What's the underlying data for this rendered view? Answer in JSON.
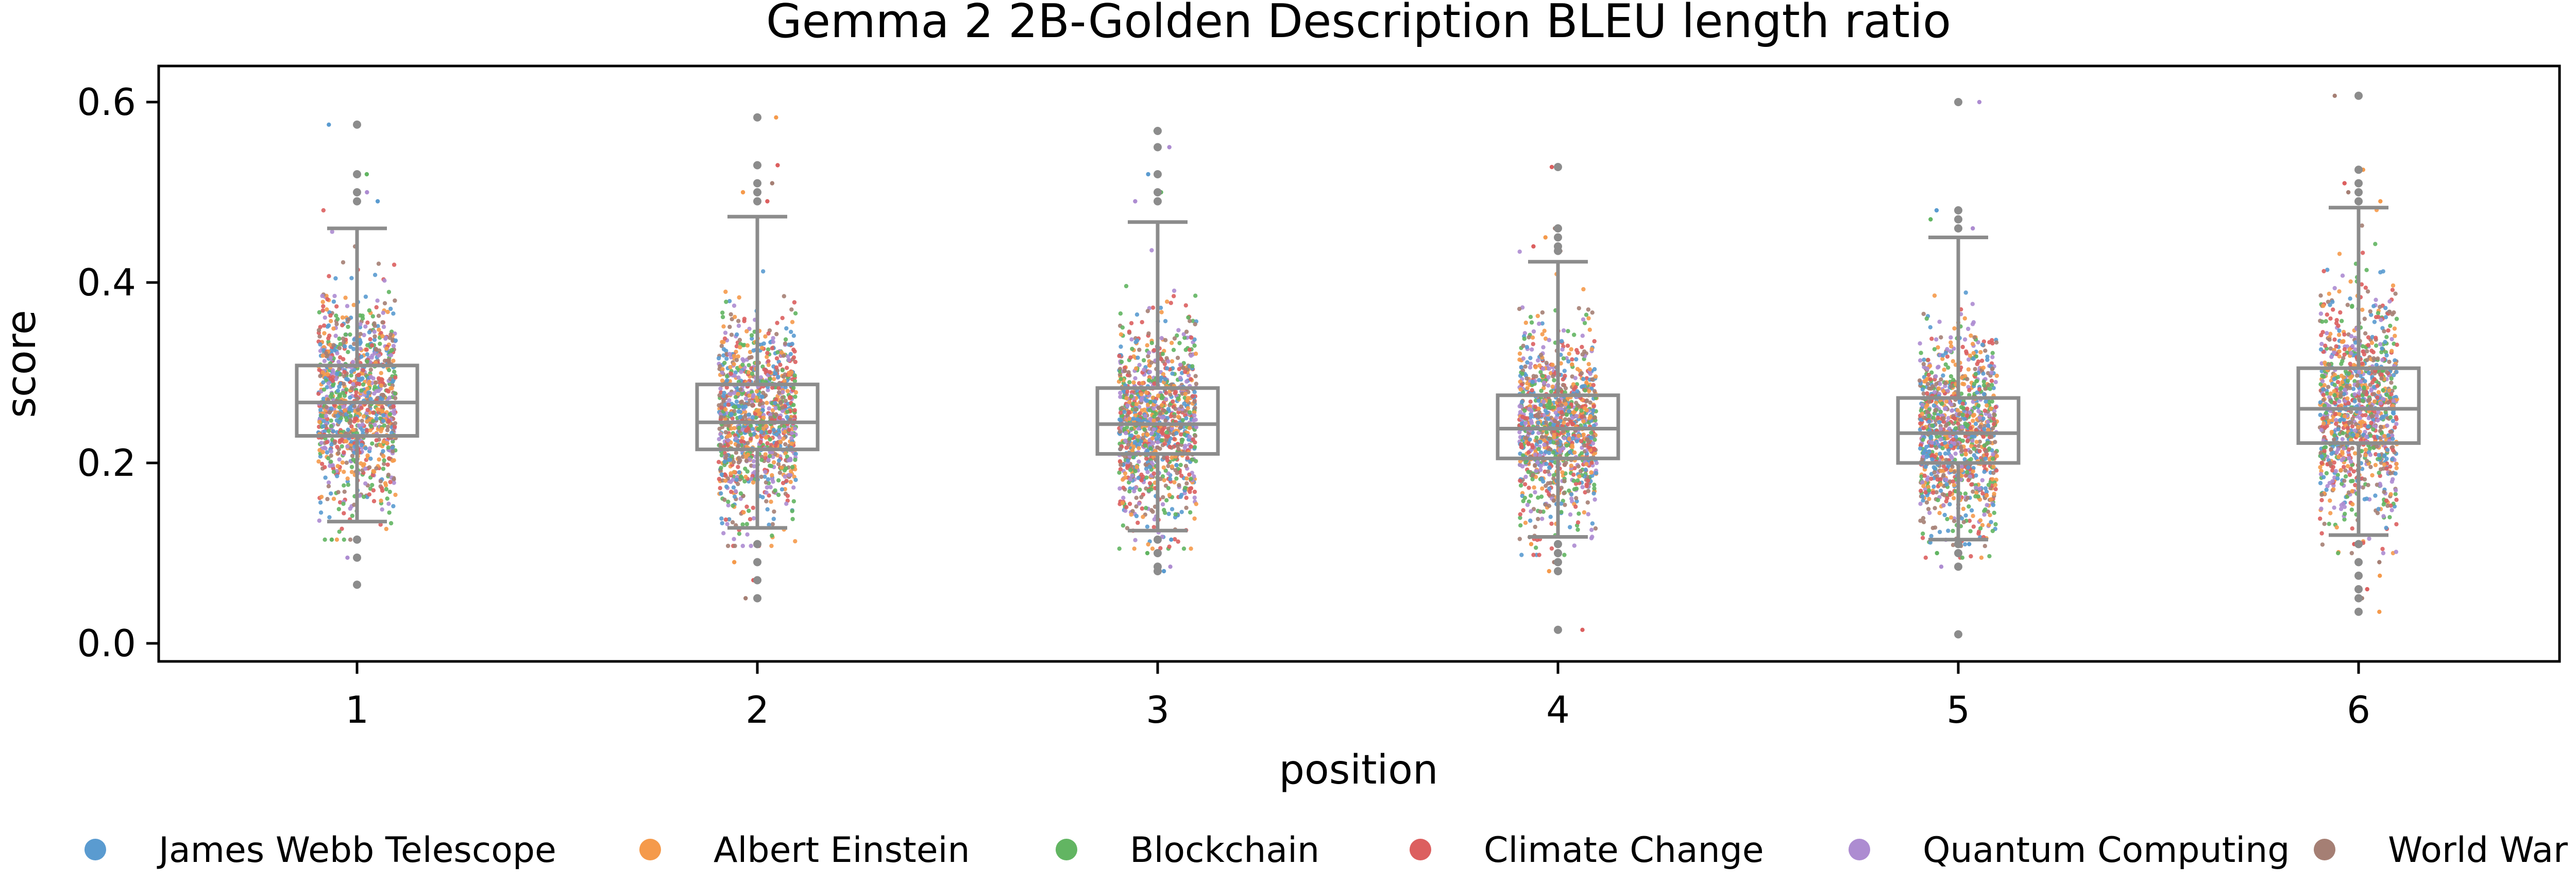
{
  "chart_data": {
    "type": "box-strip",
    "title": "Gemma 2 2B-Golden Description BLEU length ratio",
    "xlabel": "position",
    "ylabel": "score",
    "categories": [
      "1",
      "2",
      "3",
      "4",
      "5",
      "6"
    ],
    "ylim": [
      -0.02,
      0.64
    ],
    "yticks": [
      0.0,
      0.2,
      0.4,
      0.6
    ],
    "ytick_labels": [
      "0.0",
      "0.2",
      "0.4",
      "0.6"
    ],
    "grid": false,
    "legend_position": "bottom",
    "series": [
      {
        "name": "James Webb Telescope",
        "color": "#5a9bd0"
      },
      {
        "name": "Albert Einstein",
        "color": "#f59a4b"
      },
      {
        "name": "Blockchain",
        "color": "#62b562"
      },
      {
        "name": "Climate Change",
        "color": "#dc5f5f"
      },
      {
        "name": "Quantum Computing",
        "color": "#ad8cd1"
      },
      {
        "name": "World War II",
        "color": "#a57f74"
      }
    ],
    "boxes": [
      {
        "position": "1",
        "whisker_low": 0.135,
        "q1": 0.23,
        "median": 0.267,
        "q3": 0.308,
        "whisker_high": 0.46,
        "outliers": [
          0.575,
          0.52,
          0.5,
          0.49,
          0.115,
          0.095,
          0.065
        ]
      },
      {
        "position": "2",
        "whisker_low": 0.128,
        "q1": 0.215,
        "median": 0.245,
        "q3": 0.287,
        "whisker_high": 0.473,
        "outliers": [
          0.583,
          0.53,
          0.51,
          0.5,
          0.49,
          0.11,
          0.09,
          0.07,
          0.05
        ]
      },
      {
        "position": "3",
        "whisker_low": 0.125,
        "q1": 0.21,
        "median": 0.243,
        "q3": 0.283,
        "whisker_high": 0.467,
        "outliers": [
          0.568,
          0.55,
          0.52,
          0.5,
          0.49,
          0.115,
          0.1,
          0.085,
          0.08
        ]
      },
      {
        "position": "4",
        "whisker_low": 0.118,
        "q1": 0.205,
        "median": 0.238,
        "q3": 0.275,
        "whisker_high": 0.423,
        "outliers": [
          0.528,
          0.46,
          0.45,
          0.44,
          0.435,
          0.11,
          0.1,
          0.09,
          0.08,
          0.015
        ]
      },
      {
        "position": "5",
        "whisker_low": 0.115,
        "q1": 0.2,
        "median": 0.233,
        "q3": 0.272,
        "whisker_high": 0.45,
        "outliers": [
          0.6,
          0.48,
          0.47,
          0.46,
          0.11,
          0.1,
          0.085,
          0.01
        ]
      },
      {
        "position": "6",
        "whisker_low": 0.12,
        "q1": 0.222,
        "median": 0.26,
        "q3": 0.305,
        "whisker_high": 0.483,
        "outliers": [
          0.607,
          0.525,
          0.51,
          0.5,
          0.49,
          0.11,
          0.09,
          0.075,
          0.06,
          0.05,
          0.035
        ]
      }
    ]
  }
}
